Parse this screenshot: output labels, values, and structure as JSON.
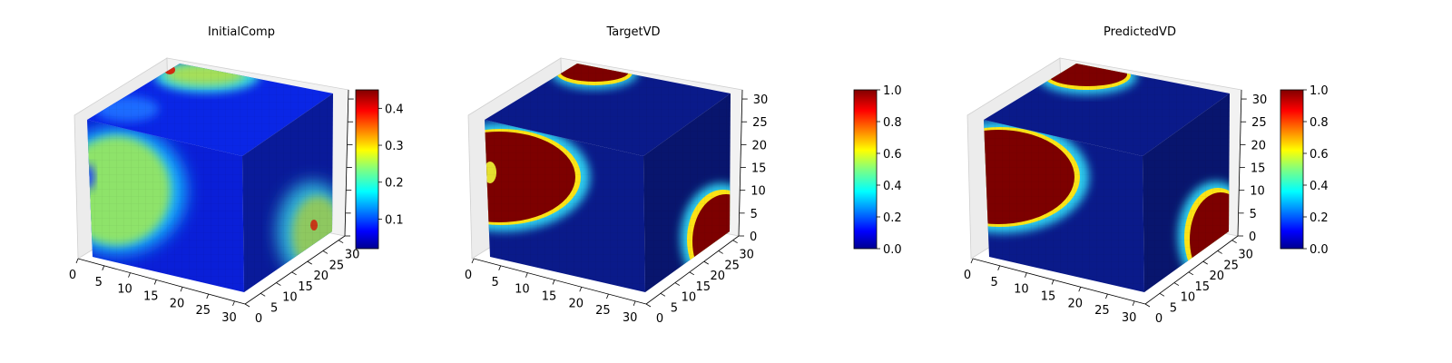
{
  "chart_data": [
    {
      "type": "heatmap",
      "subtype": "voxel-3d",
      "title": "InitialComp",
      "colormap": "jet",
      "grid_size": 32,
      "x_ticks": [
        "0",
        "5",
        "10",
        "15",
        "20",
        "25",
        "30"
      ],
      "y_ticks": [
        "0",
        "5",
        "10",
        "15",
        "20",
        "25",
        "30"
      ],
      "z_ticks": [],
      "colorbar": {
        "range": [
          0.02,
          0.45
        ],
        "ticks": [
          "0.1",
          "0.2",
          "0.3",
          "0.4"
        ],
        "tick_values": [
          0.1,
          0.2,
          0.3,
          0.4
        ]
      }
    },
    {
      "type": "heatmap",
      "subtype": "voxel-3d",
      "title": "TargetVD",
      "colormap": "jet",
      "grid_size": 32,
      "x_ticks": [
        "0",
        "5",
        "10",
        "15",
        "20",
        "25",
        "30"
      ],
      "y_ticks": [
        "0",
        "5",
        "10",
        "15",
        "20",
        "25",
        "30"
      ],
      "z_ticks": [
        "0",
        "5",
        "10",
        "15",
        "20",
        "25",
        "30"
      ],
      "colorbar": {
        "range": [
          0.0,
          1.0
        ],
        "ticks": [
          "0.0",
          "0.2",
          "0.4",
          "0.6",
          "0.8",
          "1.0"
        ],
        "tick_values": [
          0.0,
          0.2,
          0.4,
          0.6,
          0.8,
          1.0
        ]
      }
    },
    {
      "type": "heatmap",
      "subtype": "voxel-3d",
      "title": "PredictedVD",
      "colormap": "jet",
      "grid_size": 32,
      "x_ticks": [
        "0",
        "5",
        "10",
        "15",
        "20",
        "25",
        "30"
      ],
      "y_ticks": [
        "0",
        "5",
        "10",
        "15",
        "20",
        "25",
        "30"
      ],
      "z_ticks": [
        "0",
        "5",
        "10",
        "15",
        "20",
        "25",
        "30"
      ],
      "colorbar": {
        "range": [
          0.0,
          1.0
        ],
        "ticks": [
          "0.0",
          "0.2",
          "0.4",
          "0.6",
          "0.8",
          "1.0"
        ],
        "tick_values": [
          0.0,
          0.2,
          0.4,
          0.6,
          0.8,
          1.0
        ]
      }
    }
  ]
}
